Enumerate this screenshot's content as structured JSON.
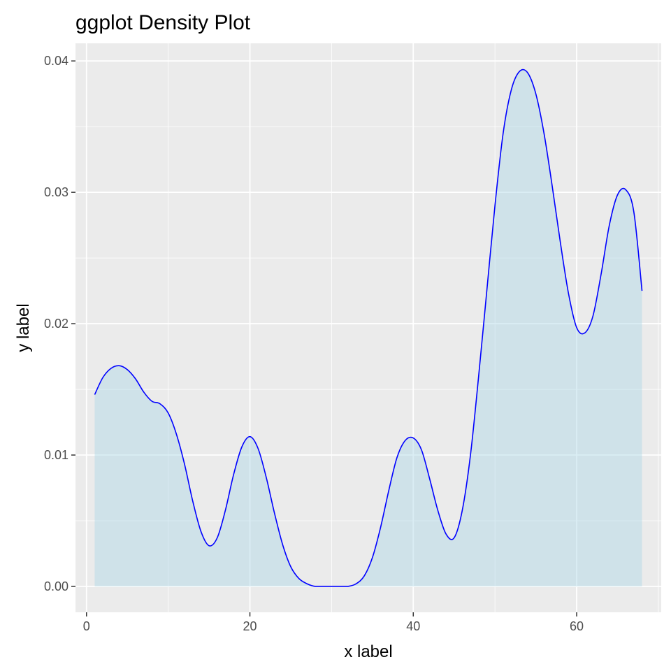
{
  "chart_data": {
    "type": "area",
    "title": "ggplot Density Plot",
    "xlabel": "x label",
    "ylabel": "y label",
    "xlim": [
      -1.35,
      70.35
    ],
    "ylim": [
      -0.00197,
      0.04134
    ],
    "x_ticks": [
      0,
      20,
      40,
      60
    ],
    "x_tick_labels": [
      "0",
      "20",
      "40",
      "60"
    ],
    "y_ticks": [
      0.0,
      0.01,
      0.02,
      0.03,
      0.04
    ],
    "y_tick_labels": [
      "0.00",
      "0.01",
      "0.02",
      "0.03",
      "0.04"
    ],
    "grid": true,
    "legend": "none",
    "series": [
      {
        "x": [
          1,
          2,
          3,
          4,
          5,
          6,
          7,
          8,
          9,
          10,
          11,
          12,
          13,
          14,
          15,
          16,
          17,
          18,
          19,
          20,
          21,
          22,
          23,
          24,
          25,
          26,
          27,
          28,
          29,
          30,
          31,
          32,
          33,
          34,
          35,
          36,
          37,
          38,
          39,
          40,
          41,
          42,
          43,
          44,
          45,
          46,
          47,
          48,
          49,
          50,
          51,
          52,
          53,
          54,
          55,
          56,
          57,
          58,
          59,
          60,
          61,
          62,
          63,
          64,
          65,
          66,
          67,
          68
        ],
        "y": [
          0.0146,
          0.0159,
          0.0166,
          0.0168,
          0.0165,
          0.0158,
          0.0148,
          0.0141,
          0.0139,
          0.0132,
          0.0116,
          0.0093,
          0.0065,
          0.0042,
          0.0031,
          0.0037,
          0.0058,
          0.0085,
          0.0106,
          0.0114,
          0.0105,
          0.0083,
          0.0056,
          0.0032,
          0.0015,
          0.0006,
          0.0002,
          0.0,
          0.0,
          0.0,
          0.0,
          0.0,
          0.0002,
          0.0008,
          0.0022,
          0.0045,
          0.0073,
          0.0098,
          0.0111,
          0.0113,
          0.0104,
          0.0082,
          0.0058,
          0.004,
          0.0037,
          0.0058,
          0.01,
          0.016,
          0.0225,
          0.029,
          0.0345,
          0.0378,
          0.0392,
          0.0391,
          0.0375,
          0.0345,
          0.0305,
          0.0262,
          0.0223,
          0.0197,
          0.0193,
          0.0206,
          0.0238,
          0.0275,
          0.0298,
          0.0302,
          0.0285,
          0.0225
        ]
      }
    ],
    "colors": {
      "panel_background": "#ebebeb",
      "grid_major": "#ffffff",
      "line": "#0000ff",
      "fill": "#add8e6"
    }
  }
}
